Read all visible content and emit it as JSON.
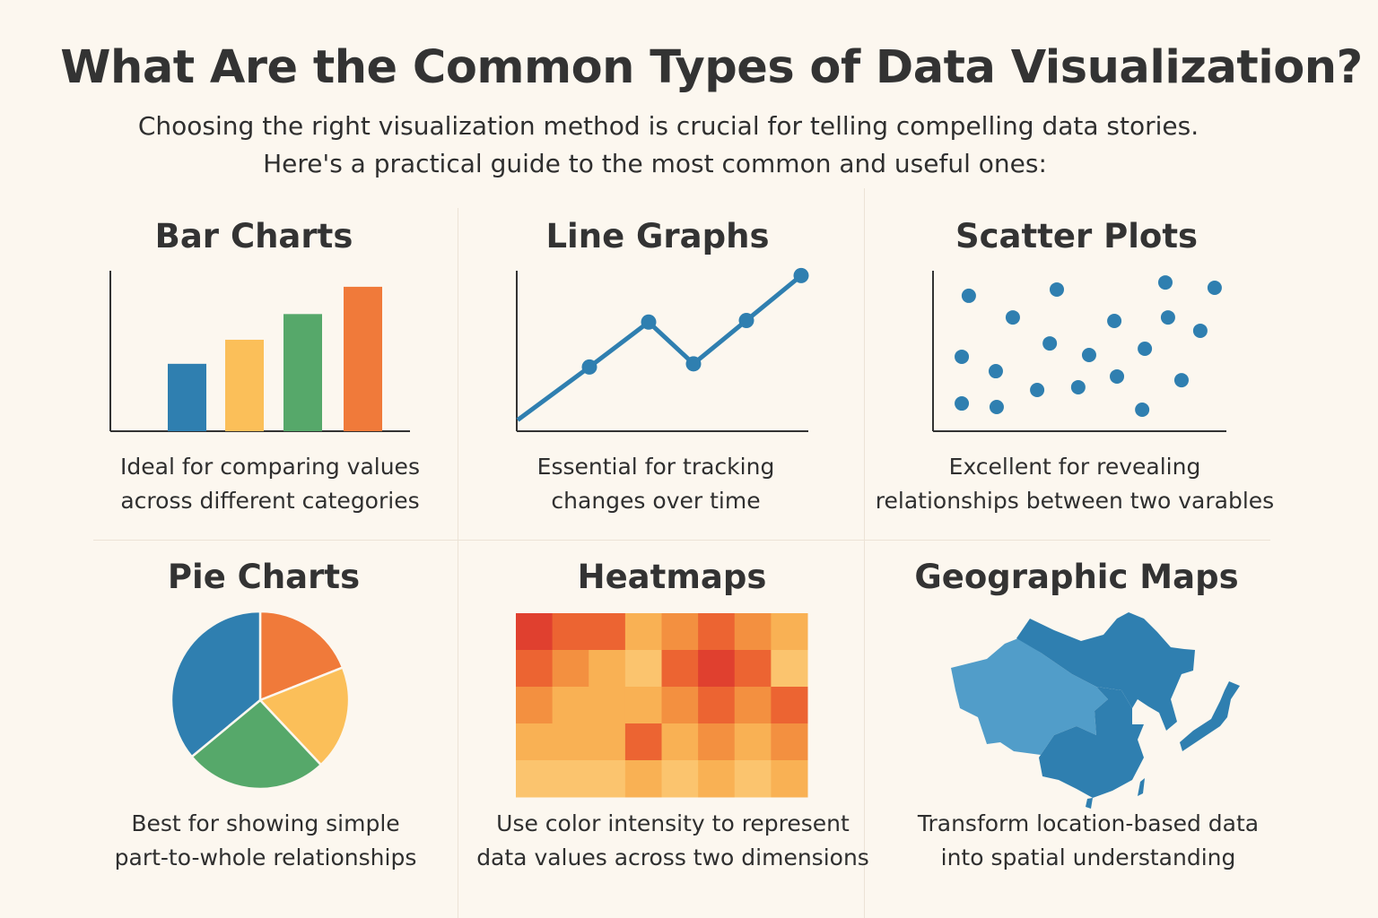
{
  "title": "What Are the Common Types of Data Visualization?",
  "subtitle_line1": "Choosing the right visualization method is crucial for telling compelling data stories.",
  "subtitle_line2": "Here's a practical guide to the most common and useful ones:",
  "panels": [
    {
      "title": "Bar Charts",
      "desc1": "Ideal for comparing values",
      "desc2": "across different categories"
    },
    {
      "title": "Line Graphs",
      "desc1": "Essential for tracking",
      "desc2": "changes over time"
    },
    {
      "title": "Scatter Plots",
      "desc1": "Excellent for revealing",
      "desc2": "relationships between two varables"
    },
    {
      "title": "Pie Charts",
      "desc1": "Best for showing simple",
      "desc2": "part-to-whole relationships"
    },
    {
      "title": "Heatmaps",
      "desc1": "Use color intensity to represent",
      "desc2": "data values across two dimensions"
    },
    {
      "title": "Geographic Maps",
      "desc1": "Transform location-based data",
      "desc2": "into spatial understanding"
    }
  ],
  "colors": {
    "blue": "#2f7fb0",
    "yellow": "#fbbf59",
    "green": "#56a86a",
    "orange": "#f07a3a",
    "light_blue": "#519dc9",
    "axis": "#333333"
  },
  "chart_data": [
    {
      "type": "bar",
      "values": [
        42,
        57,
        73,
        90
      ],
      "ylim": [
        0,
        100
      ],
      "colors": [
        "#2f7fb0",
        "#fbbf59",
        "#56a86a",
        "#f07a3a"
      ]
    },
    {
      "type": "line",
      "x": [
        0,
        1,
        2,
        3,
        4,
        5
      ],
      "values": [
        7,
        40,
        68,
        42,
        69,
        97
      ],
      "markers": [
        false,
        true,
        true,
        true,
        true,
        true
      ],
      "ylim": [
        0,
        100
      ],
      "color": "#2f7fb0"
    },
    {
      "type": "scatter",
      "points": [
        [
          12.2,
          84.4
        ],
        [
          42.2,
          88.3
        ],
        [
          79.2,
          92.7
        ],
        [
          96.0,
          89.4
        ],
        [
          27.2,
          70.9
        ],
        [
          61.8,
          68.7
        ],
        [
          80.1,
          70.9
        ],
        [
          91.1,
          62.6
        ],
        [
          39.8,
          54.7
        ],
        [
          9.8,
          46.4
        ],
        [
          53.2,
          47.5
        ],
        [
          72.2,
          51.4
        ],
        [
          21.4,
          37.4
        ],
        [
          62.7,
          34.1
        ],
        [
          84.7,
          31.8
        ],
        [
          35.5,
          25.7
        ],
        [
          49.5,
          27.4
        ],
        [
          9.8,
          17.3
        ],
        [
          21.7,
          15.1
        ],
        [
          71.3,
          13.4
        ]
      ],
      "xlim": [
        0,
        100
      ],
      "ylim": [
        0,
        100
      ],
      "color": "#2f7fb0"
    },
    {
      "type": "pie",
      "values": [
        19,
        19,
        26,
        36
      ],
      "colors": [
        "#f07a3a",
        "#fbbf59",
        "#56a86a",
        "#2f7fb0"
      ]
    },
    {
      "type": "heatmap",
      "rows": 5,
      "cols": 8,
      "values": [
        [
          4,
          3,
          3,
          1,
          2,
          3,
          2,
          1
        ],
        [
          3,
          2,
          1,
          0,
          3,
          4,
          3,
          0
        ],
        [
          2,
          1,
          1,
          1,
          2,
          3,
          2,
          3
        ],
        [
          1,
          1,
          1,
          3,
          1,
          2,
          1,
          2
        ],
        [
          0,
          0,
          0,
          1,
          0,
          1,
          0,
          1
        ]
      ],
      "scale": [
        "#fbc46e",
        "#f9b154",
        "#f39040",
        "#ec6432",
        "#e0402f"
      ]
    }
  ]
}
